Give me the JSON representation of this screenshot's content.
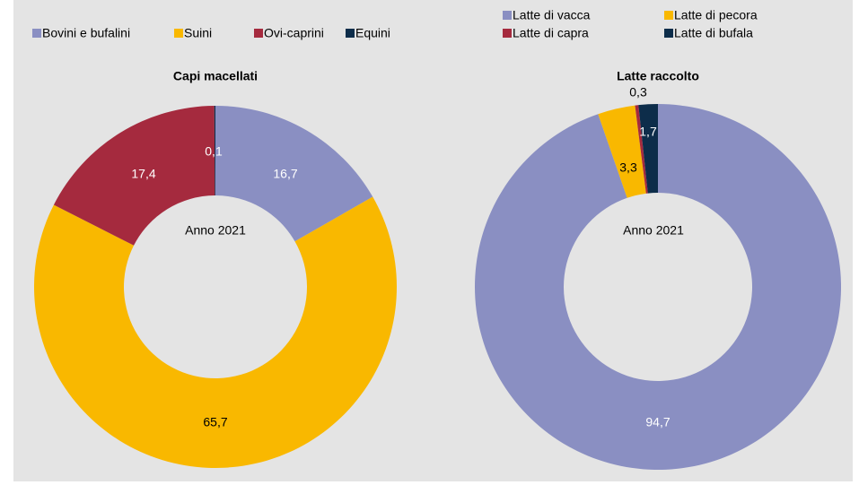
{
  "chart_data": [
    {
      "type": "donut",
      "title": "Capi macellati",
      "annotation": "Anno 2021",
      "categories": [
        "Bovini e bufalini",
        "Suini",
        "Ovi-caprini",
        "Equini"
      ],
      "values": [
        16.7,
        65.7,
        17.4,
        0.1
      ],
      "value_labels": [
        "16,7",
        "65,7",
        "17,4",
        "0,1"
      ],
      "colors": [
        "#8a8fc2",
        "#f9b800",
        "#a52a3e",
        "#0d2d4a"
      ]
    },
    {
      "type": "donut",
      "title": "Latte raccolto",
      "annotation": "Anno 2021",
      "categories": [
        "Latte di vacca",
        "Latte di pecora",
        "Latte di capra",
        "Latte di bufala"
      ],
      "values": [
        94.7,
        3.3,
        0.3,
        1.7
      ],
      "value_labels": [
        "94,7",
        "3,3",
        "0,3",
        "1,7"
      ],
      "colors": [
        "#8a8fc2",
        "#f9b800",
        "#a52a3e",
        "#0d2d4a"
      ]
    }
  ]
}
